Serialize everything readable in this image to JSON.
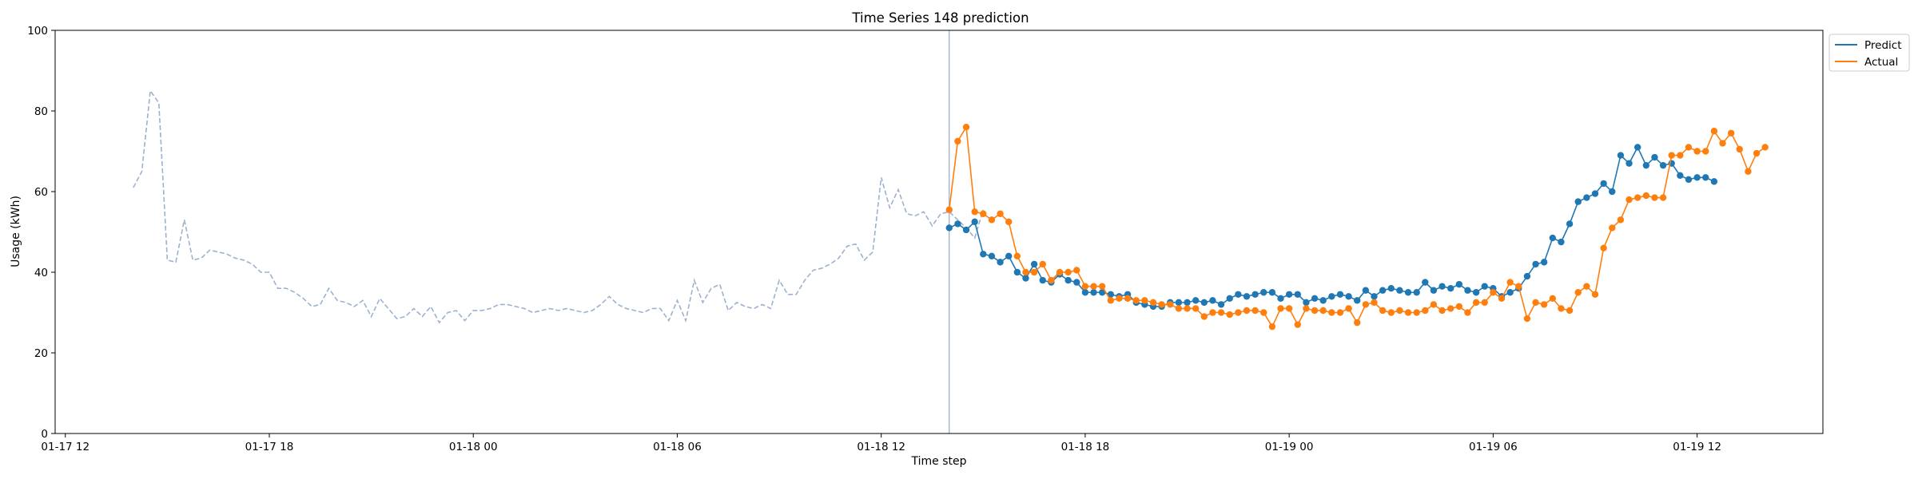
{
  "chart_data": {
    "type": "line",
    "title": "Time Series 148 prediction",
    "xlabel": "Time step",
    "ylabel": "Usage (kWh)",
    "ylim": [
      0,
      100
    ],
    "yticks": [
      "0",
      "20",
      "40",
      "60",
      "80",
      "100"
    ],
    "x_unit": "hours since 01-17 12:00",
    "xlim_hours": [
      -0.3,
      51.7
    ],
    "xticks": [
      {
        "label": "01-17 12",
        "h": 0
      },
      {
        "label": "01-17 18",
        "h": 6
      },
      {
        "label": "01-18 00",
        "h": 12
      },
      {
        "label": "01-18 06",
        "h": 18
      },
      {
        "label": "01-18 12",
        "h": 24
      },
      {
        "label": "01-18 18",
        "h": 30
      },
      {
        "label": "01-19 00",
        "h": 36
      },
      {
        "label": "01-19 06",
        "h": 42
      },
      {
        "label": "01-19 12",
        "h": 48
      }
    ],
    "forecast_start_h": 26.0,
    "history": {
      "x_start_h": 2.0,
      "step_h": 0.25,
      "values": [
        61,
        65,
        85,
        82,
        43,
        42.5,
        53,
        43,
        43.5,
        45.5,
        45,
        44.5,
        43.5,
        43,
        42,
        40,
        40,
        36,
        36,
        35,
        33.5,
        31.5,
        32,
        36,
        33,
        32.5,
        31.5,
        33,
        29,
        33.5,
        31,
        28.5,
        29,
        31,
        29,
        31.5,
        27.5,
        30,
        30.5,
        28,
        30.5,
        30.5,
        31,
        32,
        32,
        31.5,
        31,
        30,
        30.5,
        31,
        30.5,
        31,
        30.5,
        30,
        30.5,
        32,
        34,
        32,
        31,
        30.5,
        30,
        31,
        31,
        28,
        33,
        28,
        38,
        32.5,
        36,
        37,
        30.5,
        32.5,
        31.5,
        31,
        32,
        31,
        38,
        34.5,
        34.5,
        38,
        40.5,
        41,
        42,
        43.5,
        46.5,
        47,
        43,
        45,
        63.5,
        56,
        60.5,
        54.5,
        54,
        55,
        51.5,
        54.5,
        55,
        53,
        51,
        48.5,
        55.5
      ]
    },
    "series": [
      {
        "name": "Predict",
        "color": "#1f77b4",
        "x_start_h": 26.0,
        "step_h": 0.25,
        "values": [
          51,
          52,
          50.5,
          52.5,
          44.5,
          44,
          42.5,
          44,
          40,
          38.5,
          42,
          38,
          37.5,
          39.5,
          38,
          37.5,
          35,
          35,
          35,
          34.5,
          34,
          34.5,
          32.5,
          32,
          31.5,
          31.5,
          32.5,
          32.5,
          32.5,
          33,
          32.5,
          33,
          32,
          33.5,
          34.5,
          34,
          34.5,
          35,
          35,
          33.5,
          34.5,
          34.5,
          32.5,
          33.5,
          33,
          34,
          34.5,
          34,
          33,
          35.5,
          34,
          35.5,
          36,
          35.5,
          35,
          35,
          37.5,
          35.5,
          36.5,
          36,
          37,
          35.5,
          35,
          36.5,
          36,
          34,
          35,
          36,
          39,
          42,
          42.5,
          48.5,
          47.5,
          52,
          57.5,
          58.5,
          59.5,
          62,
          60,
          69,
          67,
          71,
          66.5,
          68.5,
          66.5,
          67,
          64,
          63,
          63.5,
          63.5,
          62.5
        ]
      },
      {
        "name": "Actual",
        "color": "#ff7f0e",
        "x_start_h": 26.0,
        "step_h": 0.25,
        "values": [
          55.5,
          72.5,
          76,
          55,
          54.5,
          53,
          54.5,
          52.5,
          44,
          40,
          40,
          42,
          38,
          40,
          40,
          40.5,
          36.5,
          36.5,
          36.5,
          33,
          33.5,
          33.5,
          33,
          33,
          32.5,
          32,
          32,
          31,
          31,
          31,
          29,
          30,
          30,
          29.5,
          30,
          30.5,
          30.5,
          30,
          26.5,
          31,
          31,
          27,
          31,
          30.5,
          30.5,
          30,
          30,
          31,
          27.5,
          32,
          32.5,
          30.5,
          30,
          30.5,
          30,
          30,
          30.5,
          32,
          30.5,
          31,
          31.5,
          30,
          32.5,
          32.5,
          35,
          33.5,
          37.5,
          36.5,
          28.5,
          32.5,
          32,
          33.5,
          31,
          30.5,
          35,
          36.5,
          34.5,
          46,
          51,
          53,
          58,
          58.5,
          59,
          58.5,
          58.5,
          69,
          69,
          71,
          70,
          70,
          75,
          72,
          74.5,
          70.5,
          65,
          69.5,
          71
        ]
      }
    ],
    "legend": {
      "placement": "upper-right-outside",
      "entries": [
        "Predict",
        "Actual"
      ]
    },
    "history_color": "#9db2cf",
    "forecast_line_color": "#8fa8d0",
    "grid": false
  }
}
